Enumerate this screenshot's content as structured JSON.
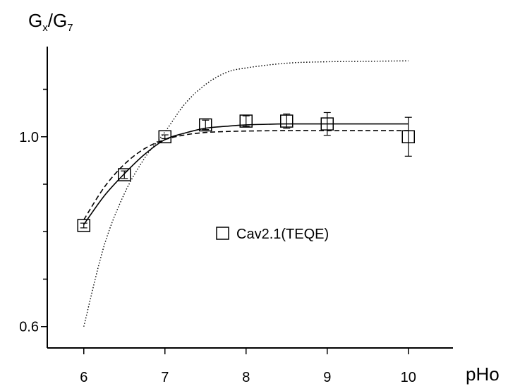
{
  "chart_data": {
    "type": "scatter",
    "xlabel": "pHo",
    "ylabel": "G",
    "ylabel_sub_x": "x",
    "ylabel_slash": "/G",
    "ylabel_sub_7": "7",
    "xlim": [
      5.55,
      10.55
    ],
    "ylim": [
      0.555,
      1.19
    ],
    "x_ticks": [
      6,
      7,
      8,
      9,
      10
    ],
    "y_ticks": [
      0.6,
      1.0
    ],
    "y_minor_ticks": [
      0.7,
      0.8,
      0.9,
      1.1
    ],
    "grid": false,
    "legend_position": "center-right",
    "series": [
      {
        "name": "Cav2.1(TEQE)",
        "style": "open-square",
        "x": [
          6,
          6.5,
          7,
          7.5,
          8,
          8.5,
          9,
          10
        ],
        "y": [
          0.813,
          0.92,
          1.0,
          1.025,
          1.033,
          1.033,
          1.027,
          1.0
        ],
        "err": [
          0.005,
          0.008,
          0.004,
          0.01,
          0.011,
          0.015,
          0.024,
          0.041
        ]
      }
    ],
    "fits": [
      {
        "style": "solid",
        "x": [
          6.0,
          6.25,
          6.5,
          6.75,
          7.0,
          7.25,
          7.5,
          7.75,
          8.0,
          8.5,
          9.0,
          9.5,
          10.0
        ],
        "y": [
          0.815,
          0.875,
          0.922,
          0.963,
          0.994,
          1.008,
          1.018,
          1.022,
          1.025,
          1.027,
          1.027,
          1.027,
          1.027
        ]
      },
      {
        "style": "dashed",
        "x": [
          6.0,
          6.25,
          6.5,
          6.75,
          7.0,
          7.25,
          7.5,
          7.75,
          8.0,
          8.5,
          9.0,
          9.5,
          10.0
        ],
        "y": [
          0.825,
          0.893,
          0.942,
          0.975,
          0.994,
          1.004,
          1.009,
          1.011,
          1.012,
          1.013,
          1.013,
          1.013,
          1.013
        ]
      },
      {
        "style": "dotted",
        "x": [
          6.0,
          6.25,
          6.5,
          6.75,
          7.0,
          7.25,
          7.5,
          7.75,
          8.0,
          8.5,
          9.0,
          9.5,
          10.0
        ],
        "y": [
          0.6,
          0.77,
          0.88,
          0.955,
          1.01,
          1.07,
          1.11,
          1.135,
          1.145,
          1.155,
          1.158,
          1.159,
          1.16
        ]
      }
    ]
  }
}
